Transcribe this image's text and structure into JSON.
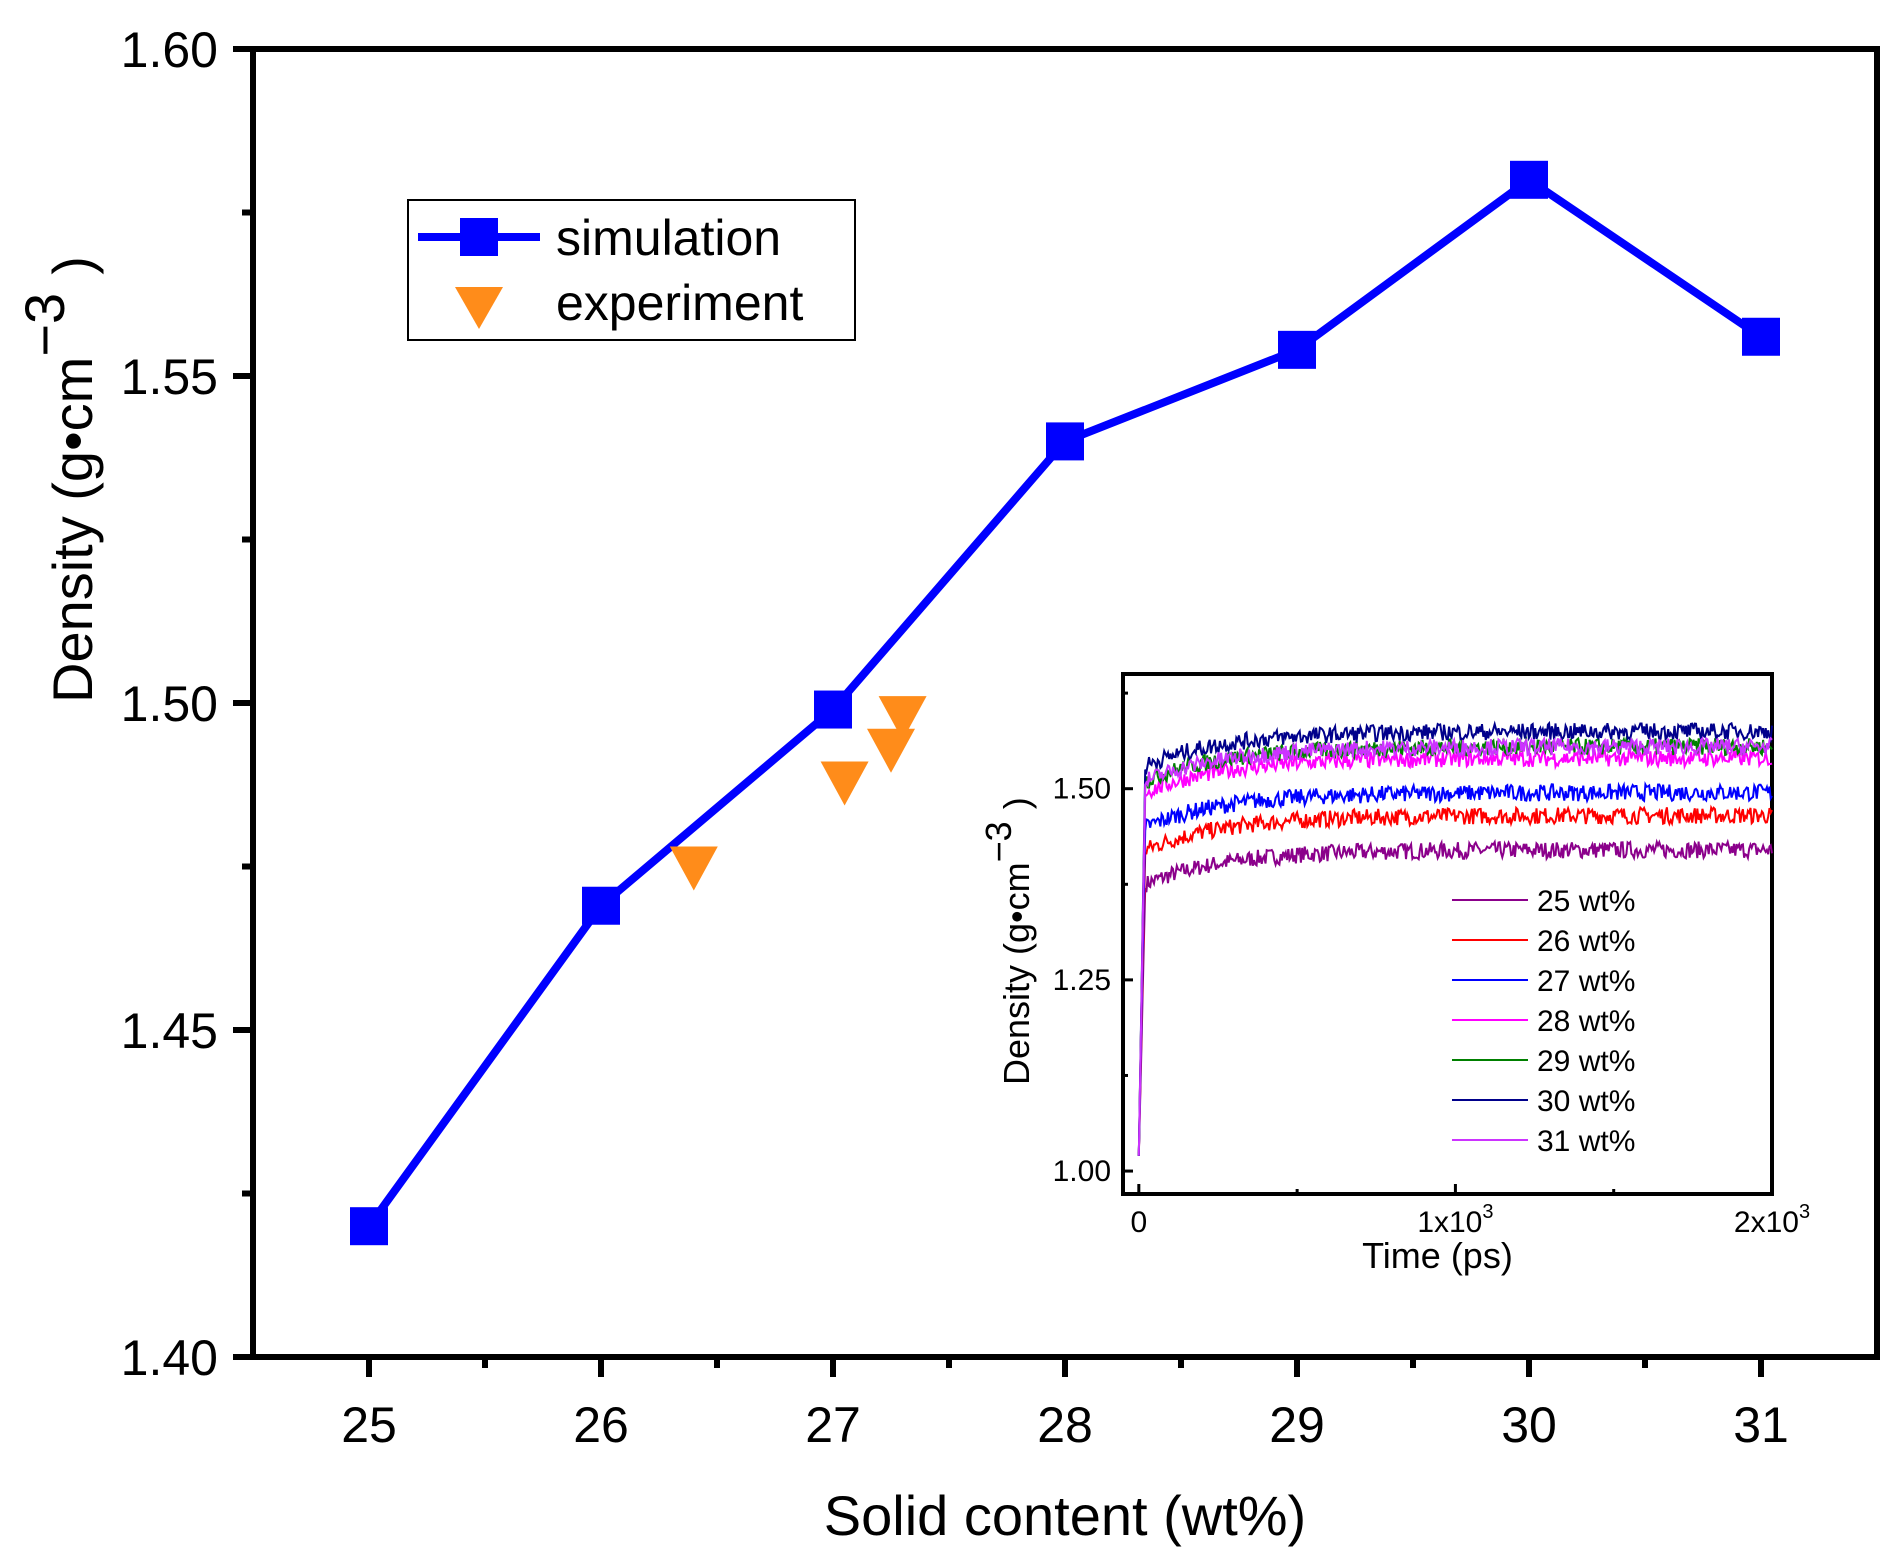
{
  "chart_data": [
    {
      "type": "line",
      "xlabel": "Solid content (wt%)",
      "ylabel": {
        "main": "Density (g•cm",
        "sup": "−3",
        "close": ")"
      },
      "xlim": [
        24.5,
        31.5
      ],
      "ylim": [
        1.4,
        1.6
      ],
      "x_ticks": [
        "25",
        "26",
        "27",
        "28",
        "29",
        "30",
        "31"
      ],
      "y_ticks": [
        "1.40",
        "1.45",
        "1.50",
        "1.55",
        "1.60"
      ],
      "legend_position": "top-left",
      "series": [
        {
          "name": "simulation",
          "marker": "square",
          "color": "#0000ff",
          "x": [
            25,
            26,
            27,
            28,
            29,
            30,
            31
          ],
          "y": [
            1.42,
            1.469,
            1.499,
            1.54,
            1.554,
            1.58,
            1.556
          ]
        },
        {
          "name": "experiment",
          "marker": "triangle-down",
          "color": "#ff8c1a",
          "x": [
            26.4,
            27.05,
            27.25,
            27.3
          ],
          "y": [
            1.475,
            1.488,
            1.493,
            1.498
          ]
        }
      ]
    },
    {
      "type": "line",
      "xlabel": "Time (ps)",
      "ylabel": {
        "main": "Density (g•cm",
        "sup": "−3",
        "close": ")"
      },
      "xlim": [
        -50,
        2000
      ],
      "ylim": [
        0.97,
        1.65
      ],
      "x_ticks": [
        {
          "base": "0",
          "exp": ""
        },
        {
          "base": "1x10",
          "exp": "3"
        },
        {
          "base": "2x10",
          "exp": "3"
        }
      ],
      "y_ticks": [
        "1.00",
        "1.25",
        "1.50"
      ],
      "legend_position": "bottom-right",
      "series": [
        {
          "name": "25 wt%",
          "color": "#8b008b",
          "plateau": 1.42
        },
        {
          "name": "26 wt%",
          "color": "#ff0000",
          "plateau": 1.465
        },
        {
          "name": "27 wt%",
          "color": "#0000ff",
          "plateau": 1.495
        },
        {
          "name": "28 wt%",
          "color": "#ff00ff",
          "plateau": 1.54
        },
        {
          "name": "29 wt%",
          "color": "#008000",
          "plateau": 1.555
        },
        {
          "name": "30 wt%",
          "color": "#00008b",
          "plateau": 1.575
        },
        {
          "name": "31 wt%",
          "color": "#cc33ff",
          "plateau": 1.555
        }
      ]
    }
  ]
}
